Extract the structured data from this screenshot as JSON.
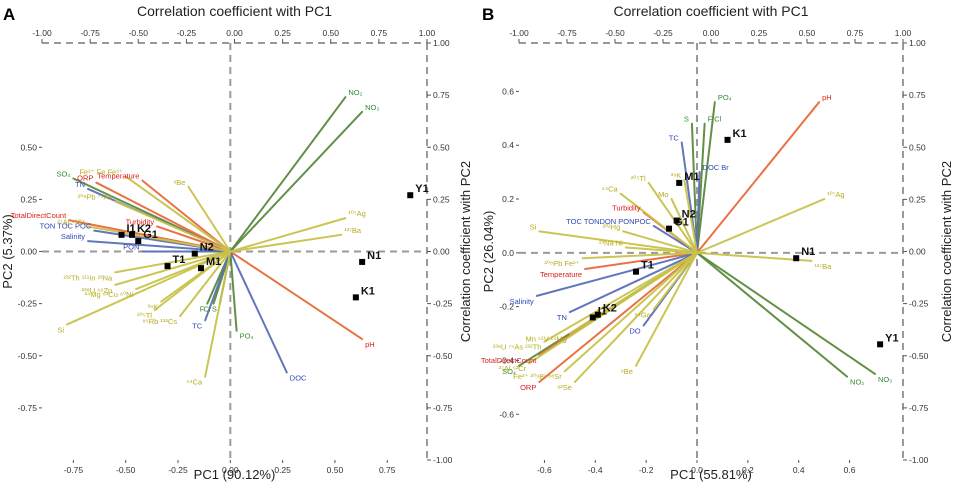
{
  "colors": {
    "olive": "#c9c24a",
    "green": "#5a8a3c",
    "blue": "#5a6fb8",
    "orange": "#ea6a3c",
    "label_olive": "#b5ad1e",
    "label_green": "#2e8b2e",
    "label_blue": "#2f48b5",
    "label_red": "#dd1b1b",
    "axis_dash": "#9a9a9a",
    "point": "#000000"
  },
  "chart_data": [
    {
      "type": "scatter",
      "panel_label": "A",
      "title": "Correlation coefficient with PC1",
      "xlabel": "PC1 (90.12%)",
      "ylabel": "PC2 (5.37%)",
      "right_label": "Correlation coefficient with PC2",
      "xlim": [
        -0.9,
        0.94
      ],
      "ylim": [
        -1.0,
        1.0
      ],
      "xticks": [
        -0.75,
        -0.5,
        -0.25,
        0.0,
        0.25,
        0.5,
        0.75
      ],
      "xtick_labels": [
        "-0.75",
        "-0.50",
        "-0.25",
        "0.00",
        "0.25",
        "0.50",
        "0.75"
      ],
      "yticks": [
        -0.75,
        -0.5,
        -0.25,
        0.0,
        0.25,
        0.5
      ],
      "ytick_labels": [
        "-0.75",
        "-0.50",
        "-0.25",
        "0.00",
        "0.25",
        "0.50"
      ],
      "top_ticks": [
        -1.0,
        -0.75,
        -0.5,
        -0.25,
        0.0,
        0.25,
        0.5,
        0.75,
        1.0
      ],
      "top_tick_labels": [
        "-1.00",
        "-0.75",
        "-0.50",
        "-0.25",
        "0.00",
        "0.25",
        "0.50",
        "0.75",
        "1.00"
      ],
      "right_ticks": [
        -1.0,
        -0.75,
        -0.5,
        -0.25,
        0.0,
        0.25,
        0.5,
        0.75,
        1.0
      ],
      "right_tick_labels": [
        "-1.00",
        "-0.75",
        "-0.50",
        "-0.25",
        "0.00",
        "0.25",
        "0.50",
        "0.75",
        "1.00"
      ],
      "points": [
        {
          "name": "Y1",
          "x": 0.86,
          "y": 0.27
        },
        {
          "name": "N1",
          "x": 0.63,
          "y": -0.05
        },
        {
          "name": "K1",
          "x": 0.6,
          "y": -0.22
        },
        {
          "name": "N2",
          "x": -0.17,
          "y": -0.01
        },
        {
          "name": "T1",
          "x": -0.3,
          "y": -0.07
        },
        {
          "name": "M1",
          "x": -0.14,
          "y": -0.08
        },
        {
          "name": "I1",
          "x": -0.52,
          "y": 0.08
        },
        {
          "name": "K2",
          "x": -0.47,
          "y": 0.08
        },
        {
          "name": "G1",
          "x": -0.44,
          "y": 0.05
        }
      ],
      "loadings": [
        {
          "name": "NO₂",
          "x": 0.55,
          "y": 0.74,
          "color": "green"
        },
        {
          "name": "NO₃",
          "x": 0.63,
          "y": 0.67,
          "color": "green"
        },
        {
          "name": "SO₄",
          "x": -0.75,
          "y": 0.35,
          "color": "green"
        },
        {
          "name": "PO₄",
          "x": 0.03,
          "y": -0.38,
          "color": "green"
        },
        {
          "name": "F",
          "x": -0.11,
          "y": -0.25,
          "color": "green"
        },
        {
          "name": "Cl",
          "x": -0.08,
          "y": -0.25,
          "color": "green"
        },
        {
          "name": "S",
          "x": -0.05,
          "y": -0.25,
          "color": "green"
        },
        {
          "name": "ORP",
          "x": -0.64,
          "y": 0.33,
          "color": "red"
        },
        {
          "name": "Temperature",
          "x": -0.42,
          "y": 0.34,
          "color": "red"
        },
        {
          "name": "Turbidity",
          "x": -0.35,
          "y": 0.12,
          "color": "red"
        },
        {
          "name": "TotalDirectCount",
          "x": -0.77,
          "y": 0.15,
          "color": "red"
        },
        {
          "name": "pH",
          "x": 0.63,
          "y": -0.42,
          "color": "red"
        },
        {
          "name": "TN",
          "x": -0.68,
          "y": 0.3,
          "color": "blue"
        },
        {
          "name": "TON TOC POC",
          "x": -0.65,
          "y": 0.1,
          "color": "blue"
        },
        {
          "name": "Salinity",
          "x": -0.68,
          "y": 0.05,
          "color": "blue"
        },
        {
          "name": "PON",
          "x": -0.42,
          "y": 0.0,
          "color": "blue"
        },
        {
          "name": "TC",
          "x": -0.12,
          "y": -0.33,
          "color": "blue"
        },
        {
          "name": "DOC",
          "x": 0.27,
          "y": -0.58,
          "color": "blue"
        },
        {
          "name": "Fe²⁺ Fe Fe³⁺",
          "x": -0.5,
          "y": 0.36,
          "color": "olive"
        },
        {
          "name": "⁹Be",
          "x": -0.2,
          "y": 0.31,
          "color": "olive"
        },
        {
          "name": "²⁰⁸Pb ⁷⁵As",
          "x": -0.55,
          "y": 0.24,
          "color": "olive"
        },
        {
          "name": "²⁷Al ⁵²Cr",
          "x": -0.68,
          "y": 0.12,
          "color": "olive"
        },
        {
          "name": "¹⁰⁷Ag",
          "x": 0.55,
          "y": 0.16,
          "color": "olive"
        },
        {
          "name": "¹³⁷Ba",
          "x": 0.53,
          "y": 0.08,
          "color": "olive"
        },
        {
          "name": "²³²Th ¹¹¹In ²³Na",
          "x": -0.55,
          "y": -0.1,
          "color": "olive"
        },
        {
          "name": "²³⁸U ⁶⁶Zn",
          "x": -0.55,
          "y": -0.16,
          "color": "olive"
        },
        {
          "name": "²⁴Mg ⁶³Cu ⁶⁰Ni",
          "x": -0.45,
          "y": -0.18,
          "color": "olive"
        },
        {
          "name": "³⁹K",
          "x": -0.33,
          "y": -0.24,
          "color": "olive"
        },
        {
          "name": "²⁰⁵Tl",
          "x": -0.36,
          "y": -0.28,
          "color": "olive"
        },
        {
          "name": "⁸⁵Rb ¹³³Cs",
          "x": -0.24,
          "y": -0.31,
          "color": "olive"
        },
        {
          "name": "Si",
          "x": -0.78,
          "y": -0.35,
          "color": "olive"
        },
        {
          "name": "⁴⁴Ca",
          "x": -0.12,
          "y": -0.6,
          "color": "olive"
        }
      ]
    },
    {
      "type": "scatter",
      "panel_label": "B",
      "title": "Correlation coefficient with PC1",
      "xlabel": "PC1 (55.81%)",
      "ylabel": "PC2 (26.04%)",
      "right_label": "Correlation coefficient with PC2",
      "xlim": [
        -0.7,
        0.81
      ],
      "ylim": [
        -0.77,
        0.78
      ],
      "xticks": [
        -0.6,
        -0.4,
        -0.2,
        0.0,
        0.2,
        0.4,
        0.6
      ],
      "xtick_labels": [
        "-0.6",
        "-0.4",
        "-0.2",
        "0.0",
        "0.2",
        "0.4",
        "0.6"
      ],
      "yticks": [
        -0.6,
        -0.4,
        -0.2,
        0.0,
        0.2,
        0.4,
        0.6
      ],
      "ytick_labels": [
        "-0.6",
        "-0.4",
        "-0.2",
        "0.0",
        "0.2",
        "0.4",
        "0.6"
      ],
      "top_ticks": [
        -1.0,
        -0.75,
        -0.5,
        -0.25,
        0.0,
        0.25,
        0.5,
        0.75,
        1.0
      ],
      "top_tick_labels": [
        "-1.00",
        "-0.75",
        "-0.50",
        "-0.25",
        "0.00",
        "0.25",
        "0.50",
        "0.75",
        "1.00"
      ],
      "right_ticks": [
        -1.0,
        -0.75,
        -0.5,
        -0.25,
        0.0,
        0.25,
        0.5,
        0.75,
        1.0
      ],
      "right_tick_labels": [
        "-1.00",
        "-0.75",
        "-0.50",
        "-0.25",
        "0.00",
        "0.25",
        "0.50",
        "0.75",
        "1.00"
      ],
      "points": [
        {
          "name": "K1",
          "x": 0.12,
          "y": 0.42
        },
        {
          "name": "M1",
          "x": -0.07,
          "y": 0.26
        },
        {
          "name": "N2",
          "x": -0.08,
          "y": 0.12
        },
        {
          "name": "G1",
          "x": -0.11,
          "y": 0.09
        },
        {
          "name": "T1",
          "x": -0.24,
          "y": -0.07
        },
        {
          "name": "I1",
          "x": -0.41,
          "y": -0.24
        },
        {
          "name": "K2",
          "x": -0.39,
          "y": -0.23
        },
        {
          "name": "N1",
          "x": 0.39,
          "y": -0.02
        },
        {
          "name": "Y1",
          "x": 0.72,
          "y": -0.34
        }
      ],
      "loadings": [
        {
          "name": "PO₄",
          "x": 0.07,
          "y": 0.56,
          "color": "green"
        },
        {
          "name": "F Cl",
          "x": 0.03,
          "y": 0.48,
          "color": "green"
        },
        {
          "name": "S",
          "x": -0.02,
          "y": 0.48,
          "color": "green"
        },
        {
          "name": "NO₂",
          "x": 0.59,
          "y": -0.46,
          "color": "green"
        },
        {
          "name": "NO₃",
          "x": 0.7,
          "y": -0.45,
          "color": "green"
        },
        {
          "name": "SO₄",
          "x": -0.7,
          "y": -0.42,
          "color": "green"
        },
        {
          "name": "pH",
          "x": 0.48,
          "y": 0.56,
          "color": "red"
        },
        {
          "name": "Turbidity",
          "x": -0.21,
          "y": 0.15,
          "color": "red"
        },
        {
          "name": "Temperature",
          "x": -0.44,
          "y": -0.06,
          "color": "red"
        },
        {
          "name": "TotalDirectCount",
          "x": -0.62,
          "y": -0.38,
          "color": "red"
        },
        {
          "name": "ORP",
          "x": -0.62,
          "y": -0.48,
          "color": "red"
        },
        {
          "name": "TC",
          "x": -0.06,
          "y": 0.41,
          "color": "blue"
        },
        {
          "name": "DOC Br",
          "x": 0.01,
          "y": 0.3,
          "color": "blue"
        },
        {
          "name": "TOC TONDON PONPOC",
          "x": -0.17,
          "y": 0.1,
          "color": "blue"
        },
        {
          "name": "Salinity",
          "x": -0.63,
          "y": -0.16,
          "color": "blue"
        },
        {
          "name": "TN",
          "x": -0.5,
          "y": -0.22,
          "color": "blue"
        },
        {
          "name": "DO",
          "x": -0.21,
          "y": -0.27,
          "color": "blue"
        },
        {
          "name": "¹⁰⁷Ag",
          "x": 0.5,
          "y": 0.2,
          "color": "olive"
        },
        {
          "name": "¹³⁷Ba",
          "x": 0.45,
          "y": -0.03,
          "color": "olive"
        },
        {
          "name": "⁴⁴Ca",
          "x": -0.3,
          "y": 0.22,
          "color": "olive"
        },
        {
          "name": "²⁰⁵Tl",
          "x": -0.19,
          "y": 0.26,
          "color": "olive"
        },
        {
          "name": "³⁹K",
          "x": -0.05,
          "y": 0.27,
          "color": "olive"
        },
        {
          "name": "Mo",
          "x": -0.1,
          "y": 0.2,
          "color": "olive"
        },
        {
          "name": "Si",
          "x": -0.62,
          "y": 0.08,
          "color": "olive"
        },
        {
          "name": "²⁰²Hg",
          "x": -0.29,
          "y": 0.08,
          "color": "olive"
        },
        {
          "name": "²³Na Ni",
          "x": -0.28,
          "y": 0.02,
          "color": "olive"
        },
        {
          "name": "²⁰⁸Pb Fe²⁺",
          "x": -0.45,
          "y": -0.02,
          "color": "olive"
        },
        {
          "name": "⁶⁹Ga",
          "x": -0.17,
          "y": -0.21,
          "color": "olive"
        },
        {
          "name": "Mn ⁵¹V ²⁴Mg",
          "x": -0.5,
          "y": -0.3,
          "color": "olive"
        },
        {
          "name": "²³⁸U ⁷⁵As ²³²Th",
          "x": -0.6,
          "y": -0.33,
          "color": "olive"
        },
        {
          "name": "²⁷Al ⁵²Cr",
          "x": -0.66,
          "y": -0.41,
          "color": "olive"
        },
        {
          "name": "Fe³⁺ ²⁰⁹Bi ⁸⁸Sr",
          "x": -0.52,
          "y": -0.44,
          "color": "olive"
        },
        {
          "name": "⁸²Se",
          "x": -0.48,
          "y": -0.48,
          "color": "olive"
        },
        {
          "name": "⁹Be",
          "x": -0.24,
          "y": -0.42,
          "color": "olive"
        }
      ]
    }
  ]
}
